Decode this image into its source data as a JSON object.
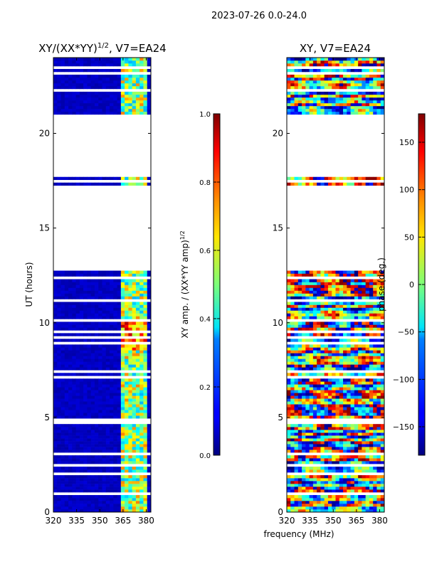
{
  "figure": {
    "suptitle": "2023-07-26 0.0-24.0",
    "xlabel_shared": "frequency (MHz)"
  },
  "chart_data": [
    {
      "type": "heatmap",
      "title": "XY/(XX*YY)",
      "title_exponent": "1/2",
      "title_suffix": ", V7=EA24",
      "xlabel": "",
      "ylabel": "UT (hours)",
      "xlim": [
        320,
        383
      ],
      "ylim": [
        0,
        24
      ],
      "xticks": [
        "320",
        "335",
        "350",
        "365",
        "380"
      ],
      "yticks": [
        "0",
        "5",
        "10",
        "15",
        "20"
      ],
      "colorbar": {
        "label": "XY amp. / (XX*YY amp)",
        "label_exponent": "1/2",
        "range": [
          0.0,
          1.0
        ],
        "ticks": [
          "0.0",
          "0.2",
          "0.4",
          "0.6",
          "0.8",
          "1.0"
        ],
        "colormap": "jet"
      },
      "data_gaps_hours": [
        [
          12.75,
          17.3
        ],
        [
          17.65,
          21.0
        ]
      ],
      "bright_band_mhz": [
        363,
        381
      ],
      "peak_amplitude_hours": [
        8.5,
        10.0
      ]
    },
    {
      "type": "heatmap",
      "title": "XY, V7=EA24",
      "xlabel": "frequency (MHz)",
      "ylabel": "",
      "xlim": [
        320,
        383
      ],
      "ylim": [
        0,
        24
      ],
      "xticks": [
        "320",
        "335",
        "350",
        "365",
        "380"
      ],
      "yticks": [
        "0",
        "5",
        "10",
        "15",
        "20"
      ],
      "colorbar": {
        "label": "phase (deg.)",
        "range": [
          -180,
          180
        ],
        "ticks": [
          "-150",
          "-100",
          "-50",
          "0",
          "50",
          "100",
          "150"
        ],
        "colormap": "jet"
      },
      "data_gaps_hours": [
        [
          12.75,
          17.3
        ],
        [
          17.65,
          21.0
        ]
      ]
    }
  ]
}
